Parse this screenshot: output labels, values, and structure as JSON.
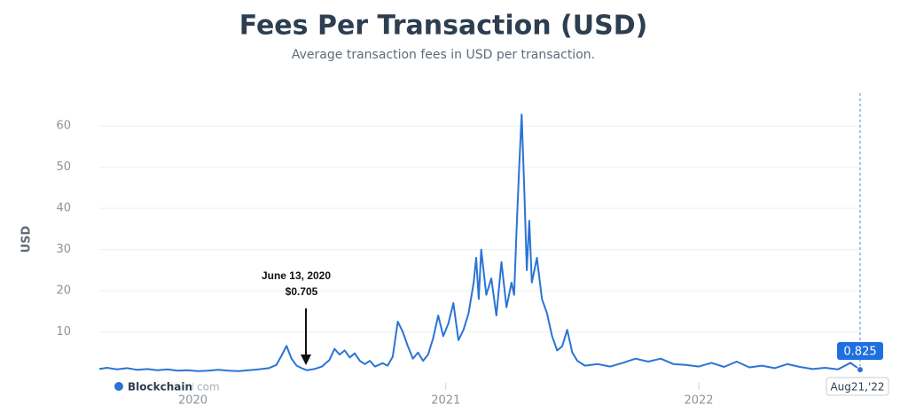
{
  "chart_data": {
    "type": "line",
    "title": "Fees Per Transaction (USD)",
    "subtitle": "Average transaction fees in USD per transaction.",
    "y_label": "USD",
    "color": "#2a74d5",
    "grid": true,
    "xlim": [
      2019.63,
      2022.638
    ],
    "xticks": [
      2020,
      2021,
      2022
    ],
    "ylim": [
      0,
      65
    ],
    "yticks": [
      10,
      20,
      30,
      40,
      50,
      60
    ],
    "annotation": {
      "date": "June 13, 2020",
      "value": "$0.705"
    },
    "hover_label": "Aug21,'22",
    "watermark": {
      "brand": "Blockchain",
      "suffix": "com"
    },
    "x": [
      2019.63,
      2019.66,
      2019.7,
      2019.74,
      2019.78,
      2019.82,
      2019.86,
      2019.9,
      2019.94,
      2019.98,
      2020.02,
      2020.06,
      2020.1,
      2020.14,
      2020.18,
      2020.22,
      2020.26,
      2020.3,
      2020.33,
      2020.35,
      2020.37,
      2020.39,
      2020.41,
      2020.43,
      2020.45,
      2020.48,
      2020.51,
      2020.54,
      2020.56,
      2020.58,
      2020.6,
      2020.62,
      2020.64,
      2020.66,
      2020.68,
      2020.7,
      2020.72,
      2020.75,
      2020.77,
      2020.79,
      2020.81,
      2020.83,
      2020.85,
      2020.87,
      2020.89,
      2020.91,
      2020.93,
      2020.95,
      2020.97,
      2020.99,
      2021.01,
      2021.03,
      2021.05,
      2021.07,
      2021.09,
      2021.11,
      2021.12,
      2021.13,
      2021.14,
      2021.16,
      2021.18,
      2021.2,
      2021.22,
      2021.24,
      2021.26,
      2021.27,
      2021.28,
      2021.29,
      2021.3,
      2021.31,
      2021.32,
      2021.33,
      2021.34,
      2021.36,
      2021.38,
      2021.4,
      2021.42,
      2021.44,
      2021.46,
      2021.48,
      2021.5,
      2021.52,
      2021.55,
      2021.6,
      2021.65,
      2021.7,
      2021.75,
      2021.8,
      2021.85,
      2021.9,
      2021.95,
      2022.0,
      2022.05,
      2022.1,
      2022.15,
      2022.2,
      2022.25,
      2022.3,
      2022.35,
      2022.4,
      2022.45,
      2022.5,
      2022.55,
      2022.6,
      2022.638
    ],
    "values": [
      1.0,
      1.3,
      0.9,
      1.2,
      0.8,
      1.0,
      0.7,
      0.9,
      0.6,
      0.7,
      0.5,
      0.6,
      0.8,
      0.6,
      0.5,
      0.7,
      0.9,
      1.2,
      2.0,
      4.2,
      6.6,
      3.5,
      1.8,
      1.2,
      0.705,
      1.0,
      1.6,
      3.2,
      5.9,
      4.5,
      5.5,
      3.8,
      4.8,
      3.0,
      2.2,
      3.0,
      1.6,
      2.4,
      1.8,
      4.0,
      12.5,
      10.0,
      6.5,
      3.5,
      5.0,
      3.0,
      4.5,
      8.5,
      14.0,
      9.0,
      12.0,
      17.0,
      8.0,
      10.5,
      14.5,
      22.0,
      28.0,
      18.0,
      30.0,
      19.0,
      23.0,
      14.0,
      27.0,
      16.0,
      22.0,
      19.0,
      35.0,
      50.0,
      62.8,
      45.0,
      25.0,
      37.0,
      22.0,
      28.0,
      18.0,
      14.5,
      9.0,
      5.5,
      6.5,
      10.5,
      5.0,
      3.0,
      1.8,
      2.2,
      1.6,
      2.5,
      3.5,
      2.8,
      3.5,
      2.2,
      2.0,
      1.6,
      2.5,
      1.5,
      2.8,
      1.4,
      1.8,
      1.2,
      2.2,
      1.5,
      1.0,
      1.3,
      0.9,
      2.5,
      0.825
    ]
  }
}
